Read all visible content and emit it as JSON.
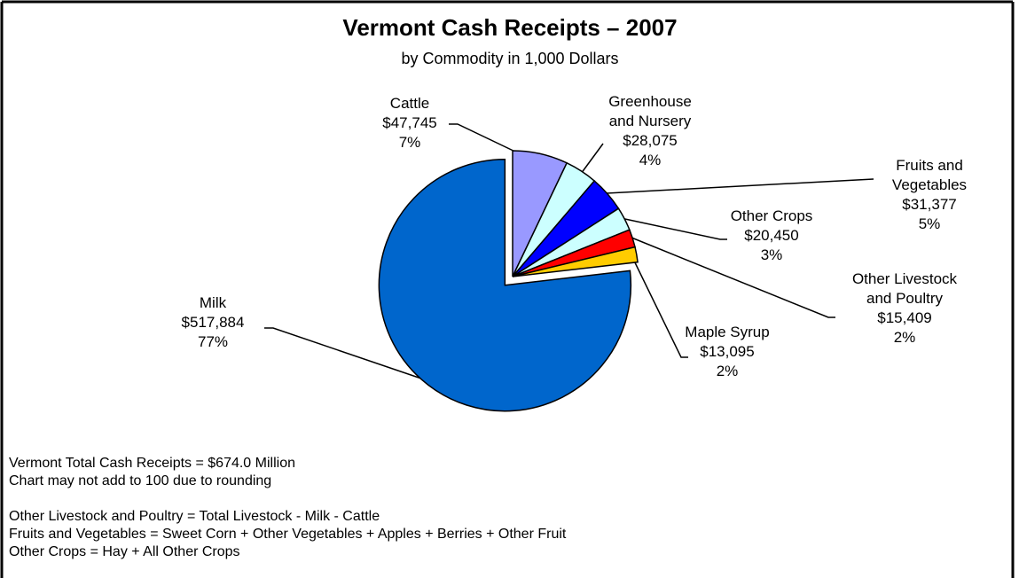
{
  "chart_data": {
    "type": "pie",
    "title": "Vermont Cash Receipts – 2007",
    "subtitle": "by Commodity in 1,000 Dollars",
    "categories": [
      "Cattle",
      "Greenhouse\nand Nursery",
      "Fruits and\nVegetables",
      "Other Crops",
      "Other Livestock\nand Poultry",
      "Maple Syrup",
      "Milk"
    ],
    "values": [
      47745,
      28075,
      31377,
      20450,
      15409,
      13095,
      517884
    ],
    "value_labels": [
      "$47,745",
      "$28,075",
      "$31,377",
      "$20,450",
      "$15,409",
      "$13,095",
      "$517,884"
    ],
    "percents": [
      7,
      4,
      5,
      3,
      2,
      2,
      77
    ],
    "percent_labels": [
      "7%",
      "4%",
      "5%",
      "3%",
      "2%",
      "2%",
      "77%"
    ],
    "colors": [
      "#9999ff",
      "#ccffff",
      "#0000ff",
      "#ccffff",
      "#ff0000",
      "#ffcc00",
      "#0066cc"
    ],
    "notes": [
      "Vermont Total Cash Receipts = $674.0 Million",
      "Chart may not add to 100 due to rounding",
      "Other Livestock and Poultry = Total Livestock - Milk - Cattle",
      "Fruits and Vegetables = Sweet Corn + Other Vegetables + Apples + Berries + Other Fruit",
      "Other Crops = Hay + All Other Crops"
    ]
  }
}
